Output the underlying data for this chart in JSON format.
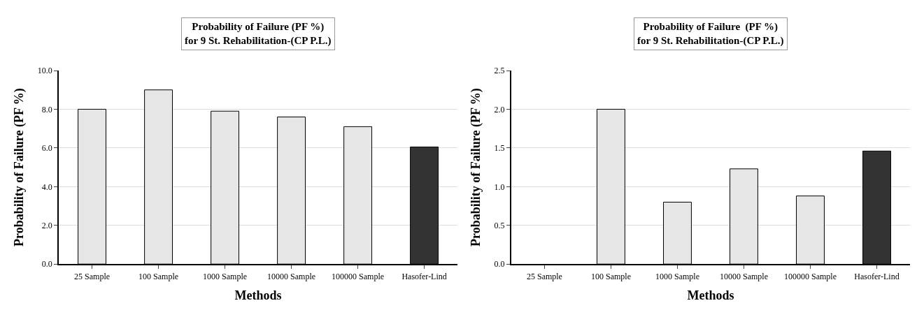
{
  "chart_data": [
    {
      "type": "bar",
      "title": "Probability of Failure (PF %)\nfor 9 St. Rehabilitation-(CP P.L.)",
      "xlabel": "Methods",
      "ylabel": "Probability of Failure (PF %)",
      "categories": [
        "25 Sample",
        "100 Sample",
        "1000 Sample",
        "10000 Sample",
        "100000 Sample",
        "Hasofer-Lind"
      ],
      "values": [
        8.0,
        9.0,
        7.9,
        7.6,
        7.1,
        6.05
      ],
      "colors": [
        "#e6e6e6",
        "#e6e6e6",
        "#e6e6e6",
        "#e6e6e6",
        "#e6e6e6",
        "#333333"
      ],
      "ylim": [
        0,
        10
      ],
      "yticks": [
        {
          "value": 0,
          "label": "0.0"
        },
        {
          "value": 2,
          "label": "2.0"
        },
        {
          "value": 4,
          "label": "4.0"
        },
        {
          "value": 6,
          "label": "6.0"
        },
        {
          "value": 8,
          "label": "8.0"
        },
        {
          "value": 10,
          "label": "10.0"
        }
      ],
      "grid": "y"
    },
    {
      "type": "bar",
      "title": "Probability of Failure  (PF %)\nfor 9 St. Rehabilitation-(CP P.L.)",
      "xlabel": "Methods",
      "ylabel": "Probability of Failure (PF %)",
      "categories": [
        "25 Sample",
        "100 Sample",
        "1000 Sample",
        "10000 Sample",
        "100000 Sample",
        "Hasofer-Lind"
      ],
      "values": [
        null,
        2.0,
        0.8,
        1.23,
        0.88,
        1.46
      ],
      "colors": [
        null,
        "#e6e6e6",
        "#e6e6e6",
        "#e6e6e6",
        "#e6e6e6",
        "#333333"
      ],
      "ylim": [
        0,
        2.5
      ],
      "yticks": [
        {
          "value": 0,
          "label": "0.0"
        },
        {
          "value": 0.5,
          "label": "0.5"
        },
        {
          "value": 1,
          "label": "1.0"
        },
        {
          "value": 1.5,
          "label": "1.5"
        },
        {
          "value": 2,
          "label": "2.0"
        },
        {
          "value": 2.5,
          "label": "2.5"
        }
      ],
      "grid": "y"
    }
  ]
}
